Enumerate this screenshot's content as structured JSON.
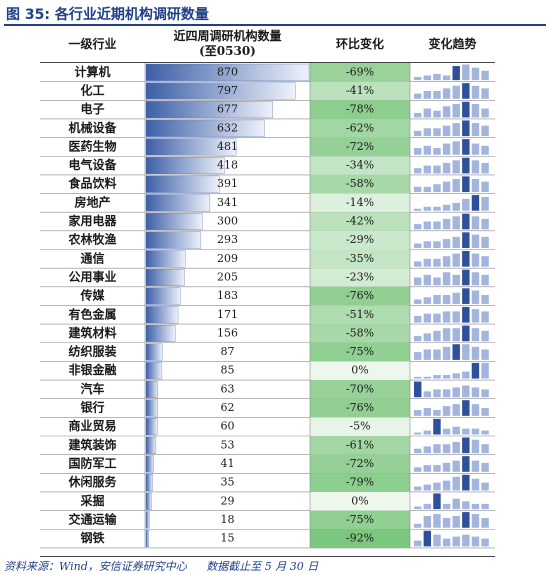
{
  "figure": {
    "title": "图 35:  各行业近期机构调研数量",
    "source": "资料来源：Wind，安信证券研究中心",
    "note": "数据截止至 5 月 30 日"
  },
  "header": {
    "col_industry": "一级行业",
    "col_count_line1": "近四周调研机构数量",
    "col_count_line2": "(至0530)",
    "col_change": "环比变化",
    "col_trend": "变化趋势"
  },
  "colors": {
    "title": "#1f3f86",
    "bar_dark": "#3d5fa8",
    "bar_light": "#eef2fa",
    "change_green": "#7cc77e",
    "change_light": "#eef7ee",
    "trend_light": "#a3b5dc",
    "trend_dark": "#2e4f9a"
  },
  "chart_data": {
    "type": "table",
    "count_max": 870,
    "categories": [
      "计算机",
      "化工",
      "电子",
      "机械设备",
      "医药生物",
      "电气设备",
      "食品饮料",
      "房地产",
      "家用电器",
      "农林牧渔",
      "通信",
      "公用事业",
      "传媒",
      "有色金属",
      "建筑材料",
      "纺织服装",
      "非银金融",
      "汽车",
      "银行",
      "商业贸易",
      "建筑装饰",
      "国防军工",
      "休闲服务",
      "采掘",
      "交通运输",
      "钢铁"
    ],
    "counts": [
      870,
      797,
      677,
      632,
      481,
      418,
      391,
      341,
      300,
      293,
      209,
      205,
      183,
      171,
      156,
      87,
      85,
      63,
      62,
      60,
      53,
      41,
      35,
      29,
      18,
      15
    ],
    "changes_display": [
      "-69%",
      "-41%",
      "-78%",
      "-62%",
      "-72%",
      "-34%",
      "-58%",
      "-14%",
      "-42%",
      "-29%",
      "-35%",
      "-23%",
      "-76%",
      "-51%",
      "-58%",
      "-75%",
      "0%",
      "-70%",
      "-76%",
      "-5%",
      "-61%",
      "-72%",
      "-79%",
      "0%",
      "-75%",
      "-92%"
    ],
    "changes": [
      -69,
      -41,
      -78,
      -62,
      -72,
      -34,
      -58,
      -14,
      -42,
      -29,
      -35,
      -23,
      -76,
      -51,
      -58,
      -75,
      0,
      -70,
      -76,
      -5,
      -61,
      -72,
      -79,
      0,
      -75,
      -92
    ],
    "trends": [
      [
        2,
        3,
        4,
        3,
        9,
        10,
        8,
        6
      ],
      [
        2,
        3,
        3,
        4,
        5,
        6,
        5,
        4
      ],
      [
        2,
        4,
        3,
        5,
        6,
        7,
        6,
        4
      ],
      [
        2,
        3,
        3,
        4,
        5,
        6,
        5,
        4
      ],
      [
        3,
        4,
        3,
        5,
        6,
        7,
        5,
        4
      ],
      [
        2,
        3,
        3,
        4,
        5,
        6,
        5,
        4
      ],
      [
        2,
        2,
        3,
        4,
        5,
        6,
        5,
        4
      ],
      [
        1,
        2,
        2,
        3,
        4,
        6,
        8,
        7
      ],
      [
        2,
        3,
        3,
        4,
        5,
        6,
        5,
        4
      ],
      [
        2,
        3,
        3,
        4,
        5,
        7,
        6,
        5
      ],
      [
        2,
        3,
        3,
        4,
        5,
        6,
        5,
        4
      ],
      [
        3,
        4,
        3,
        5,
        4,
        6,
        5,
        4
      ],
      [
        2,
        3,
        4,
        4,
        5,
        7,
        6,
        4
      ],
      [
        3,
        4,
        4,
        5,
        5,
        7,
        6,
        5
      ],
      [
        2,
        3,
        4,
        5,
        5,
        6,
        5,
        4
      ],
      [
        3,
        4,
        4,
        5,
        6,
        6,
        5,
        4
      ],
      [
        1,
        1,
        2,
        2,
        3,
        4,
        9,
        9
      ],
      [
        8,
        3,
        4,
        4,
        5,
        6,
        5,
        4
      ],
      [
        3,
        4,
        3,
        5,
        6,
        8,
        6,
        4
      ],
      [
        1,
        2,
        8,
        3,
        4,
        3,
        3,
        2
      ],
      [
        2,
        3,
        4,
        4,
        5,
        7,
        6,
        4
      ],
      [
        2,
        3,
        3,
        4,
        5,
        7,
        5,
        4
      ],
      [
        2,
        3,
        4,
        5,
        7,
        8,
        6,
        4
      ],
      [
        1,
        2,
        6,
        2,
        4,
        3,
        2,
        2
      ],
      [
        2,
        6,
        7,
        5,
        6,
        8,
        7,
        5
      ],
      [
        3,
        8,
        6,
        4,
        5,
        6,
        5,
        4
      ]
    ],
    "trend_dark_index": [
      4,
      5,
      5,
      5,
      5,
      5,
      5,
      6,
      5,
      5,
      5,
      5,
      5,
      5,
      5,
      4,
      6,
      0,
      5,
      2,
      5,
      5,
      5,
      2,
      5,
      1
    ]
  }
}
